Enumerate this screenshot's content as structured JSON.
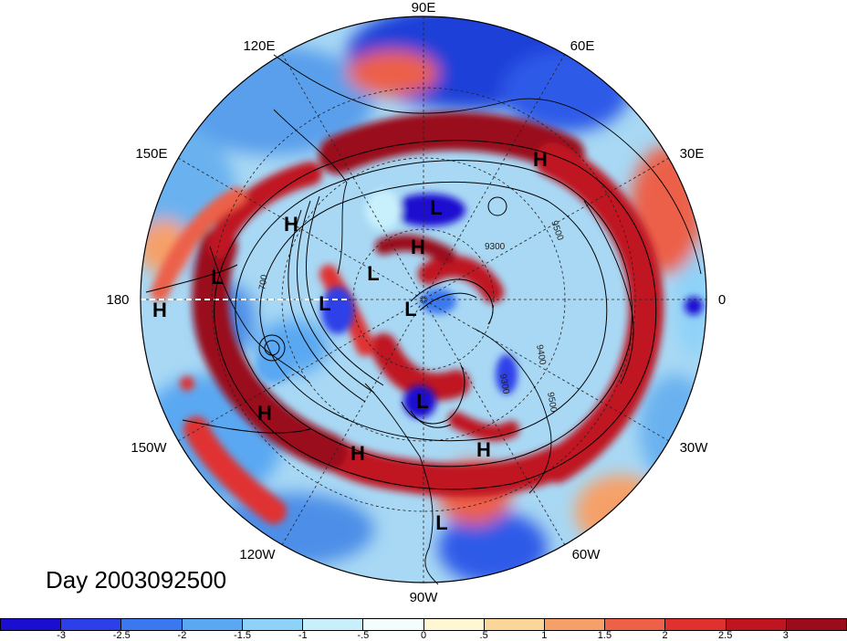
{
  "map": {
    "projection": "north-polar-stereographic",
    "field": "anomaly",
    "longitude_labels": {
      "lon_90e": "90E",
      "lon_60e": "60E",
      "lon_120e": "120E",
      "lon_150e": "150E",
      "lon_30e": "30E",
      "lon_180": "180",
      "lon_0": "0",
      "lon_150w": "150W",
      "lon_30w": "30W",
      "lon_120w": "120W",
      "lon_60w": "60W",
      "lon_90w": "90W"
    },
    "pressure_centers": [
      {
        "label": "H",
        "region": "Siberia"
      },
      {
        "label": "L",
        "region": "Arctic-Siberia"
      },
      {
        "label": "H",
        "region": "East-Siberia"
      },
      {
        "label": "H",
        "region": "Arctic"
      },
      {
        "label": "L",
        "region": "Bering"
      },
      {
        "label": "L",
        "region": "Arctic"
      },
      {
        "label": "L",
        "region": "Alaska"
      },
      {
        "label": "L",
        "region": "Arctic-Greenland"
      },
      {
        "label": "H",
        "region": "North-Pacific"
      },
      {
        "label": "H",
        "region": "Pacific"
      },
      {
        "label": "L",
        "region": "Hudson-Bay"
      },
      {
        "label": "H",
        "region": "Canada"
      },
      {
        "label": "H",
        "region": "North-Atlantic"
      },
      {
        "label": "L",
        "region": "Caribbean"
      }
    ],
    "contour_labels": [
      "9300",
      "9500",
      "9400",
      "9500",
      "9300",
      "700"
    ]
  },
  "day_label": "Day 2003092500",
  "colorbar": {
    "colors": [
      "#1a0fd0",
      "#2d3fe8",
      "#3b78f0",
      "#5aa8f2",
      "#8ed2f8",
      "#c8f0fc",
      "#f4fcfd",
      "#fff6d2",
      "#fbd69b",
      "#f6a069",
      "#ec6148",
      "#e03030",
      "#bf1520",
      "#9a0c1c"
    ],
    "ticks": [
      "-3",
      "-2.5",
      "-2",
      "-1.5",
      "-1",
      "-.5",
      "0",
      ".5",
      "1",
      "1.5",
      "2",
      "2.5",
      "3"
    ]
  }
}
